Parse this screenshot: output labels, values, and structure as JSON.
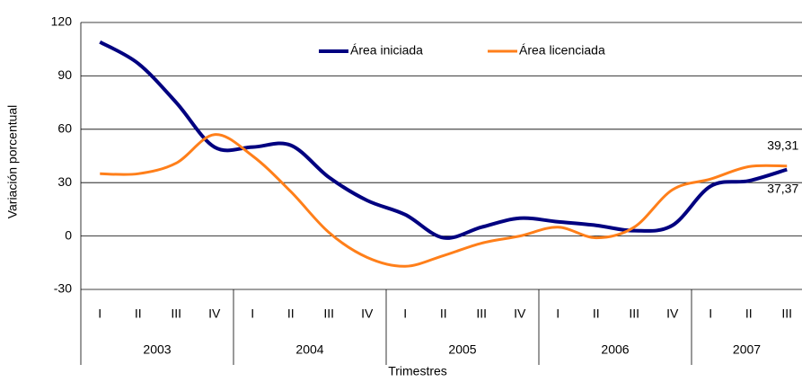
{
  "chart_data": {
    "type": "line",
    "y_label": "Variación porcentual",
    "x_label": "Trimestres",
    "categories": [
      "I",
      "II",
      "III",
      "IV",
      "I",
      "II",
      "III",
      "IV",
      "I",
      "II",
      "III",
      "IV",
      "I",
      "II",
      "III",
      "IV",
      "I",
      "II",
      "III"
    ],
    "category_groups": [
      {
        "label": "2003",
        "span": 4
      },
      {
        "label": "2004",
        "span": 4
      },
      {
        "label": "2005",
        "span": 4
      },
      {
        "label": "2006",
        "span": 4
      },
      {
        "label": "2007",
        "span": 3
      }
    ],
    "series": [
      {
        "name": "Área iniciada",
        "color": "#000080",
        "values": [
          109,
          97,
          75,
          50,
          50,
          51,
          33,
          20,
          12,
          -1,
          5,
          10,
          8,
          6,
          3,
          6,
          28,
          31,
          37.37
        ],
        "value_labels": [
          null,
          null,
          null,
          null,
          null,
          null,
          null,
          null,
          null,
          null,
          null,
          null,
          null,
          null,
          null,
          null,
          null,
          null,
          "37,37"
        ]
      },
      {
        "name": "Área licenciada",
        "color": "#ff7f1a",
        "values": [
          35,
          35,
          41,
          57,
          45,
          25,
          2,
          -12,
          -17,
          -11,
          -4,
          0,
          5,
          -1,
          5,
          26,
          32,
          39,
          39.31
        ],
        "value_labels": [
          null,
          null,
          null,
          null,
          null,
          null,
          null,
          null,
          null,
          null,
          null,
          null,
          null,
          null,
          null,
          null,
          null,
          null,
          "39,31"
        ]
      }
    ],
    "ylim": [
      -30,
      120
    ],
    "yticks": [
      -30,
      0,
      30,
      60,
      90,
      120
    ],
    "grid": true,
    "legend": "top"
  }
}
